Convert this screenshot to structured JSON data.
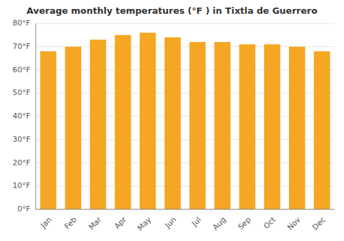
{
  "chart_data": {
    "type": "bar",
    "title": "Average monthly temperatures (°F ) in Tixtla de Guerrero",
    "categories": [
      "Jan",
      "Feb",
      "Mar",
      "Apr",
      "May",
      "Jun",
      "Jul",
      "Aug",
      "Sep",
      "Oct",
      "Nov",
      "Dec"
    ],
    "values": [
      68,
      70,
      73,
      75,
      76,
      74,
      72,
      72,
      71,
      71,
      70,
      68
    ],
    "color": "#F5A623",
    "ylim": [
      0,
      80
    ],
    "yticks": [
      {
        "value": 0,
        "label": "0°F"
      },
      {
        "value": 10,
        "label": "10°F"
      },
      {
        "value": 20,
        "label": "20°F"
      },
      {
        "value": 30,
        "label": "30°F"
      },
      {
        "value": 40,
        "label": "40°F"
      },
      {
        "value": 50,
        "label": "50°F"
      },
      {
        "value": 60,
        "label": "60°F"
      },
      {
        "value": 70,
        "label": "70°F"
      },
      {
        "value": 80,
        "label": "80°F"
      }
    ],
    "grid": true
  }
}
